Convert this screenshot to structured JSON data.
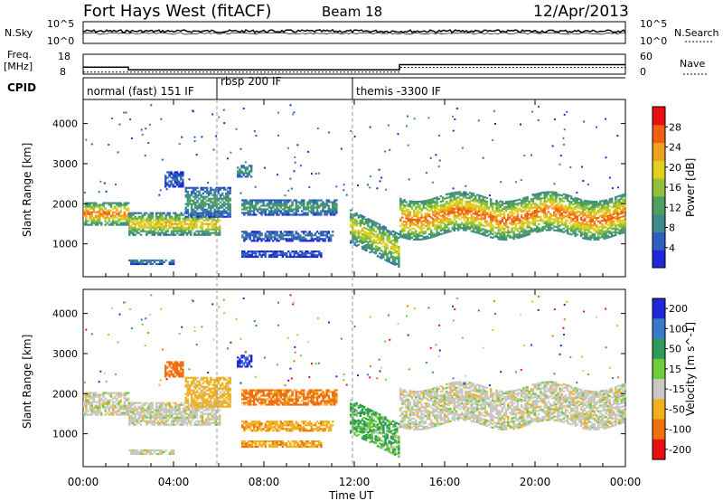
{
  "header": {
    "station": "Fort Hays West (fitACF)",
    "beam": "Beam 18",
    "date": "12/Apr/2013"
  },
  "noise_panel": {
    "left_label": "N.Sky",
    "right_label": "N.Search",
    "left_ticks": [
      "10^5",
      "10^0"
    ],
    "right_ticks": [
      "10^5",
      "10^0"
    ]
  },
  "freq_panel": {
    "left_label_1": "Freq.",
    "left_label_2": "[MHz]",
    "right_label": "Nave",
    "left_ticks": [
      "18",
      "8"
    ],
    "right_ticks": [
      "60",
      "0"
    ]
  },
  "cpid": {
    "label": "CPID",
    "segments": [
      {
        "label": "normal (fast) 151 IF",
        "start_hour": 0
      },
      {
        "label": "rbsp 200 IF",
        "start_hour": 6.0
      },
      {
        "label": "themis -3300 IF",
        "start_hour": 12.0
      }
    ]
  },
  "x_axis": {
    "title": "Time UT",
    "ticks": [
      "00:00",
      "04:00",
      "08:00",
      "12:00",
      "16:00",
      "20:00",
      "00:00"
    ]
  },
  "power_panel": {
    "ylabel": "Slant Range [km]",
    "cbar_label": "Power [dB]",
    "yticks": [
      "1000",
      "2000",
      "3000",
      "4000"
    ],
    "cbar_ticks": [
      "4",
      "8",
      "12",
      "16",
      "20",
      "24",
      "28"
    ],
    "colors": [
      "#1f27d6",
      "#2f5fbf",
      "#3f8a8a",
      "#4f9f5f",
      "#8fc23a",
      "#e0d020",
      "#f0a020",
      "#f06010",
      "#e81010"
    ]
  },
  "velocity_panel": {
    "ylabel": "Slant Range [km]",
    "cbar_label": "Velocity [m s^-1]",
    "yticks": [
      "1000",
      "2000",
      "3000",
      "4000"
    ],
    "cbar_ticks": [
      "200",
      "100",
      "50",
      "15",
      "-15",
      "-50",
      "-100",
      "-200"
    ],
    "colors": [
      "#1f27d6",
      "#3a78c8",
      "#2f9a5a",
      "#6ccc3a",
      "#c8c8c0",
      "#f0b020",
      "#f07010",
      "#e81010"
    ]
  },
  "chart_data": {
    "type": "heatmap",
    "x_range_hours": [
      0,
      24
    ],
    "y_range_km": [
      180,
      4600
    ],
    "freq_mhz": {
      "before": 11.5,
      "after_2h": 10.2,
      "after_14h": 12.8
    },
    "nave": {
      "before": 6,
      "after_14h": 20
    },
    "bands": [
      {
        "name": "main",
        "t0": 0.0,
        "t1": 2.0,
        "y0": 1500,
        "y1": 2050,
        "peak_db": 26,
        "vel": 0
      },
      {
        "name": "main",
        "t0": 2.0,
        "t1": 6.0,
        "y0": 1250,
        "y1": 1800,
        "peak_db": 22,
        "vel": 0
      },
      {
        "name": "rise",
        "t0": 4.5,
        "t1": 6.5,
        "y0": 1700,
        "y1": 2450,
        "peak_db": 12,
        "vel": -30
      },
      {
        "name": "mid",
        "t0": 7.0,
        "t1": 11.2,
        "y0": 1750,
        "y1": 2150,
        "peak_db": 12,
        "vel": -60
      },
      {
        "name": "low1",
        "t0": 7.0,
        "t1": 11.0,
        "y0": 1100,
        "y1": 1350,
        "peak_db": 8,
        "vel": -40
      },
      {
        "name": "low2",
        "t0": 7.0,
        "t1": 10.5,
        "y0": 700,
        "y1": 850,
        "peak_db": 6,
        "vel": -40
      },
      {
        "name": "ground",
        "t0": 2.0,
        "t1": 4.0,
        "y0": 520,
        "y1": 650,
        "peak_db": 10,
        "vel": 0
      },
      {
        "name": "descend",
        "t0": 11.8,
        "t1": 14.0,
        "y0": 1050,
        "y1": 1900,
        "peak_db": 20,
        "vel": 30
      },
      {
        "name": "main",
        "t0": 14.0,
        "t1": 24.0,
        "y0": 1250,
        "y1": 2200,
        "peak_db": 26,
        "vel": 0
      },
      {
        "name": "patch",
        "t0": 6.8,
        "t1": 7.4,
        "y0": 2700,
        "y1": 3000,
        "peak_db": 12,
        "vel": 150
      },
      {
        "name": "patch",
        "t0": 3.6,
        "t1": 4.4,
        "y0": 2450,
        "y1": 2850,
        "peak_db": 6,
        "vel": -70
      }
    ]
  }
}
